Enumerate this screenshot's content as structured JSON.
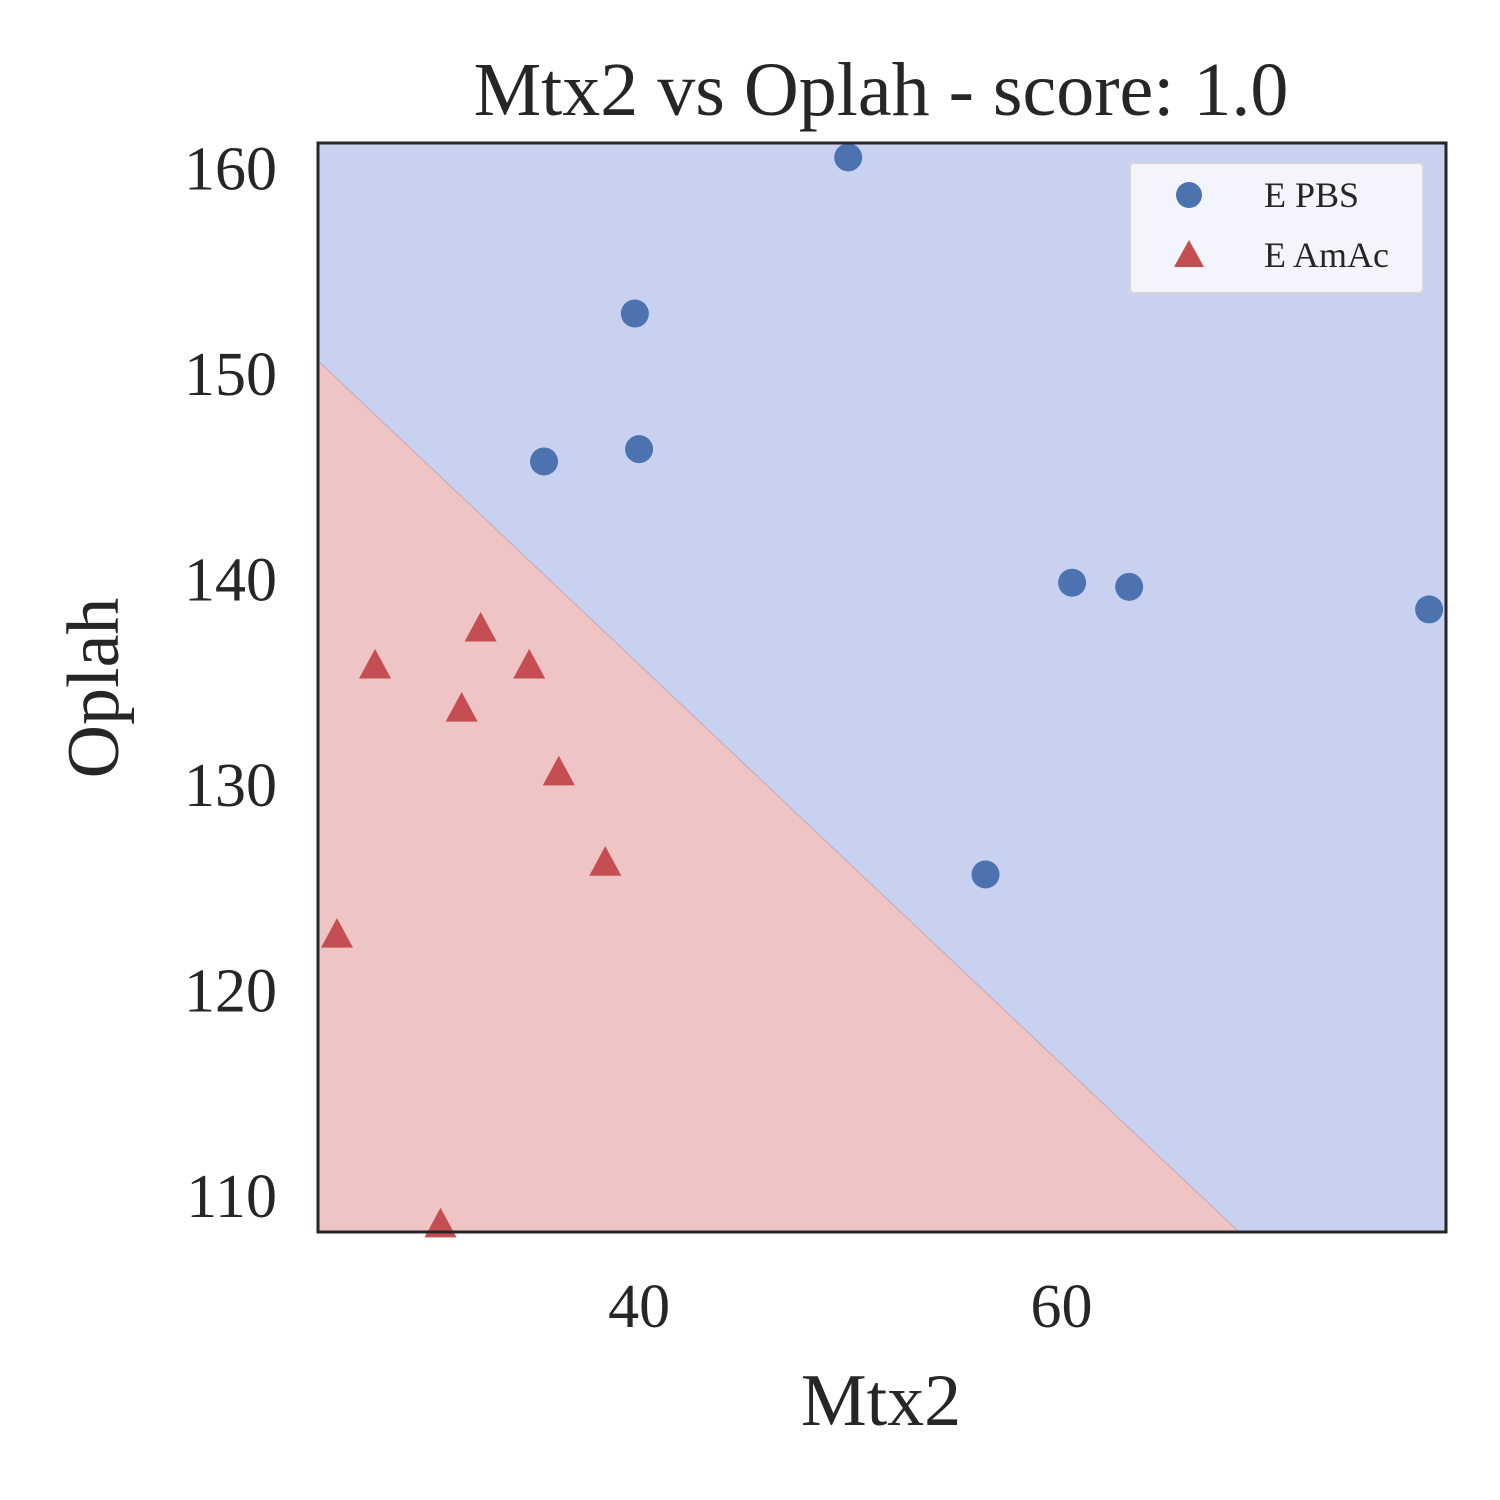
{
  "chart_data": {
    "type": "scatter",
    "title": "Mtx2 vs Oplah - score: 1.0",
    "xlabel": "Mtx2",
    "ylabel": "Oplah",
    "xlim": [
      24.8,
      78.2
    ],
    "ylim": [
      108.2,
      161.2
    ],
    "xticks": [
      40,
      60
    ],
    "yticks": [
      110,
      120,
      130,
      140,
      150,
      160
    ],
    "grid": false,
    "legend_position": "top-right",
    "decision_boundary": {
      "x": [
        24.8,
        68.4
      ],
      "y": [
        150.6,
        108.2
      ],
      "below_color": "#efc4c4",
      "above_color": "#c9d1f1"
    },
    "series": [
      {
        "name": "E PBS",
        "marker": "circle",
        "color": "#4c72b0",
        "points": [
          [
            49.9,
            160.5
          ],
          [
            39.8,
            152.9
          ],
          [
            35.5,
            145.7
          ],
          [
            40.0,
            146.3
          ],
          [
            60.5,
            139.8
          ],
          [
            63.2,
            139.6
          ],
          [
            77.4,
            138.5
          ],
          [
            56.4,
            125.6
          ]
        ]
      },
      {
        "name": "E AmAc",
        "marker": "triangle",
        "color": "#c44e52",
        "points": [
          [
            32.5,
            137.6
          ],
          [
            27.5,
            135.8
          ],
          [
            34.8,
            135.8
          ],
          [
            31.6,
            133.7
          ],
          [
            36.2,
            130.6
          ],
          [
            38.4,
            126.2
          ],
          [
            25.7,
            122.7
          ],
          [
            30.6,
            108.6
          ]
        ]
      }
    ]
  }
}
